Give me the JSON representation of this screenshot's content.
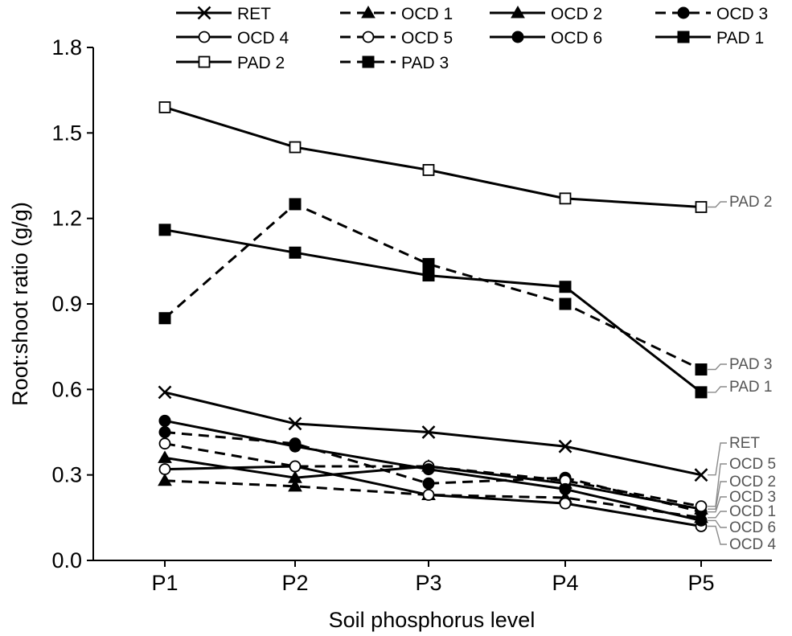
{
  "chart_data": {
    "type": "line",
    "xlabel": "Soil phosphorus level",
    "ylabel": "Root:shoot ratio (g/g)",
    "categories": [
      "P1",
      "P2",
      "P3",
      "P4",
      "P5"
    ],
    "ylim": [
      0,
      1.8
    ],
    "yticks": [
      "0.0",
      "0.3",
      "0.6",
      "0.9",
      "1.2",
      "1.5",
      "1.8"
    ],
    "grid": false,
    "legend_position": "top",
    "series": [
      {
        "name": "RET",
        "marker": "x",
        "dashed": false,
        "values": [
          0.59,
          0.48,
          0.45,
          0.4,
          0.3
        ]
      },
      {
        "name": "OCD 1",
        "marker": "filled-triangle",
        "dashed": true,
        "values": [
          0.28,
          0.26,
          0.23,
          0.22,
          0.15
        ]
      },
      {
        "name": "OCD 2",
        "marker": "filled-triangle",
        "dashed": false,
        "values": [
          0.36,
          0.29,
          0.33,
          0.27,
          0.18
        ]
      },
      {
        "name": "OCD 3",
        "marker": "filled-circle",
        "dashed": true,
        "values": [
          0.45,
          0.41,
          0.27,
          0.29,
          0.17
        ]
      },
      {
        "name": "OCD 4",
        "marker": "open-circle",
        "dashed": false,
        "values": [
          0.32,
          0.33,
          0.23,
          0.2,
          0.12
        ]
      },
      {
        "name": "OCD 5",
        "marker": "open-circle",
        "dashed": true,
        "values": [
          0.41,
          0.33,
          0.33,
          0.28,
          0.19
        ]
      },
      {
        "name": "OCD 6",
        "marker": "filled-circle",
        "dashed": false,
        "values": [
          0.49,
          0.4,
          0.32,
          0.25,
          0.14
        ]
      },
      {
        "name": "PAD 1",
        "marker": "filled-square",
        "dashed": false,
        "values": [
          1.16,
          1.08,
          1.0,
          0.96,
          0.59
        ]
      },
      {
        "name": "PAD 2",
        "marker": "open-square",
        "dashed": false,
        "values": [
          1.59,
          1.45,
          1.37,
          1.27,
          1.24
        ]
      },
      {
        "name": "PAD 3",
        "marker": "filled-square",
        "dashed": true,
        "values": [
          0.85,
          1.25,
          1.04,
          0.9,
          0.67
        ]
      }
    ],
    "end_labels": [
      {
        "text": "PAD 2",
        "series": "PAD 2"
      },
      {
        "text": "PAD 3",
        "series": "PAD 3"
      },
      {
        "text": "PAD 1",
        "series": "PAD 1"
      },
      {
        "text": "RET",
        "series": "RET"
      },
      {
        "text": "OCD 5",
        "series": "OCD 5"
      },
      {
        "text": "OCD 2",
        "series": "OCD 2"
      },
      {
        "text": "OCD 3",
        "series": "OCD 3"
      },
      {
        "text": "OCD 1",
        "series": "OCD 1"
      },
      {
        "text": "OCD 6",
        "series": "OCD 6"
      },
      {
        "text": "OCD 4",
        "series": "OCD 4"
      }
    ]
  }
}
